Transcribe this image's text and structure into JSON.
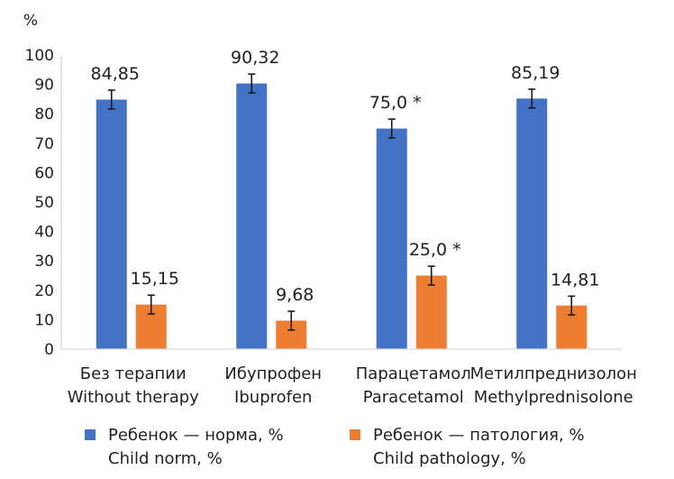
{
  "chart_data": {
    "type": "bar",
    "ylabel": "%",
    "ylim": [
      0,
      100
    ],
    "yticks": [
      0,
      10,
      20,
      30,
      40,
      50,
      60,
      70,
      80,
      90,
      100
    ],
    "grid": false,
    "categories": [
      {
        "ru": "Без терапии",
        "en": "Without therapy"
      },
      {
        "ru": "Ибупрофен",
        "en": "Ibuprofen"
      },
      {
        "ru": "Парацетамол",
        "en": "Paracetamol"
      },
      {
        "ru": "Метилпреднизолон",
        "en": "Methylprednisolone"
      }
    ],
    "series": [
      {
        "name_ru": "Ребенок — норма, %",
        "name_en": "Child norm, %",
        "color": "#4472c4",
        "values": [
          84.85,
          90.32,
          75.0,
          85.19
        ],
        "labels": [
          "84,85",
          "90,32",
          "75,0 *",
          "85,19"
        ],
        "error": [
          3.2,
          3.2,
          3.2,
          3.2
        ]
      },
      {
        "name_ru": "Ребенок — патология, %",
        "name_en": "Child pathology, %",
        "color": "#ed7d31",
        "values": [
          15.15,
          9.68,
          25.0,
          14.81
        ],
        "labels": [
          "15,15",
          "9,68",
          "25,0 *",
          "14,81"
        ],
        "error": [
          3.2,
          3.2,
          3.2,
          3.2
        ]
      }
    ],
    "legend_position": "bottom"
  }
}
